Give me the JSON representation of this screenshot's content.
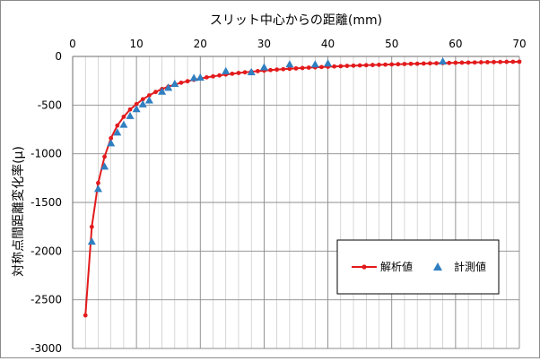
{
  "chart_data": {
    "type": "line",
    "title": "",
    "xlabel": "スリット中心からの距離(mm)",
    "ylabel": "対称点間距離変化率(μ)",
    "xlim": [
      0,
      70
    ],
    "ylim": [
      -3000,
      0
    ],
    "x_ticks": [
      0,
      10,
      20,
      30,
      40,
      50,
      60,
      70
    ],
    "y_ticks": [
      0,
      -500,
      -1000,
      -1500,
      -2000,
      -2500,
      -3000
    ],
    "x_tick_labels": [
      "0",
      "10",
      "20",
      "30",
      "40",
      "50",
      "60",
      "70"
    ],
    "y_tick_labels": [
      "0",
      "-500",
      "-1000",
      "-1500",
      "-2000",
      "-2500",
      "-3000"
    ],
    "x_axis_position": "top",
    "grid": true,
    "legend_position": "bottom-right",
    "series": [
      {
        "name": "解析値",
        "kind": "line-with-dot-markers",
        "color": "#e31a1c",
        "x": [
          2,
          3,
          4,
          5,
          6,
          7,
          8,
          9,
          10,
          11,
          12,
          13,
          14,
          15,
          16,
          17,
          18,
          19,
          20,
          21,
          22,
          23,
          24,
          25,
          26,
          27,
          28,
          29,
          30,
          31,
          32,
          33,
          34,
          35,
          36,
          37,
          38,
          39,
          40,
          41,
          42,
          43,
          44,
          45,
          46,
          47,
          48,
          49,
          50,
          51,
          52,
          53,
          54,
          55,
          56,
          57,
          58,
          59,
          60,
          61,
          62,
          63,
          64,
          65,
          66,
          67,
          68,
          69,
          70
        ],
        "y": [
          -2660,
          -1750,
          -1300,
          -1030,
          -840,
          -710,
          -620,
          -545,
          -490,
          -440,
          -400,
          -365,
          -335,
          -310,
          -290,
          -270,
          -255,
          -240,
          -228,
          -215,
          -205,
          -195,
          -186,
          -178,
          -170,
          -163,
          -157,
          -151,
          -146,
          -140,
          -135,
          -131,
          -127,
          -123,
          -119,
          -115,
          -112,
          -109,
          -106,
          -103,
          -100,
          -97,
          -95,
          -92,
          -90,
          -88,
          -86,
          -84,
          -82,
          -80,
          -78,
          -76,
          -75,
          -73,
          -71,
          -70,
          -68,
          -67,
          -65,
          -64,
          -63,
          -62,
          -60,
          -59,
          -58,
          -57,
          -56,
          -55,
          -54
        ]
      },
      {
        "name": "計測値",
        "kind": "triangle-markers",
        "color": "#2f7fc1",
        "x": [
          3,
          4,
          5,
          6,
          7,
          8,
          9,
          10,
          11,
          12,
          14,
          15,
          16,
          19,
          20,
          24,
          28,
          30,
          34,
          38,
          40,
          58
        ],
        "y": [
          -1900,
          -1360,
          -1130,
          -890,
          -780,
          -700,
          -610,
          -540,
          -490,
          -450,
          -360,
          -320,
          -280,
          -220,
          -215,
          -150,
          -160,
          -110,
          -80,
          -80,
          -70,
          -50
        ]
      }
    ]
  }
}
